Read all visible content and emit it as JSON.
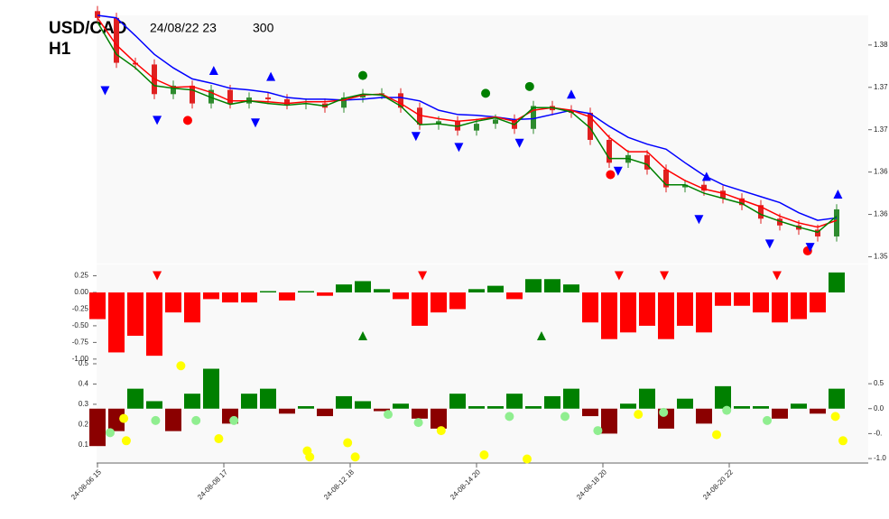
{
  "chart_data": [
    {
      "type": "candlestick",
      "title": "USD/CAD",
      "subtitle": "H1",
      "annotations": [
        "24/08/22 23",
        "300"
      ],
      "x": [
        0,
        7.5,
        15,
        22.5,
        30,
        37.5,
        45,
        52.5,
        60,
        67.5,
        75,
        82.5,
        90,
        97.5,
        105,
        112.5,
        120,
        127.5,
        135,
        142.5,
        150,
        157.5,
        165,
        172.5,
        180,
        187.5,
        195,
        202.5,
        210,
        217.5,
        225,
        232.5,
        240,
        247.5,
        255,
        262.5,
        270,
        277.5,
        285,
        292.5
      ],
      "xlim": [
        0,
        300
      ],
      "open": [
        1.384,
        1.3832,
        1.3779,
        1.3777,
        1.3742,
        1.3752,
        1.3731,
        1.3747,
        1.3731,
        1.3738,
        1.3736,
        1.373,
        1.3731,
        1.3726,
        1.3738,
        1.3742,
        1.3743,
        1.3726,
        1.3706,
        1.371,
        1.3699,
        1.3707,
        1.3712,
        1.3701,
        1.3728,
        1.3723,
        1.372,
        1.3688,
        1.3661,
        1.367,
        1.3653,
        1.3632,
        1.3635,
        1.3628,
        1.3619,
        1.3611,
        1.3595,
        1.3587,
        1.3582,
        1.3574
      ],
      "high": [
        1.3846,
        1.3838,
        1.3785,
        1.3783,
        1.3758,
        1.3758,
        1.3753,
        1.3753,
        1.3744,
        1.3744,
        1.3742,
        1.3737,
        1.3737,
        1.3744,
        1.3748,
        1.3749,
        1.3749,
        1.3732,
        1.3716,
        1.3716,
        1.3713,
        1.3718,
        1.3718,
        1.3734,
        1.3734,
        1.3729,
        1.3726,
        1.3694,
        1.3676,
        1.3676,
        1.3659,
        1.3641,
        1.3641,
        1.3634,
        1.3625,
        1.3617,
        1.3601,
        1.3593,
        1.3588,
        1.3612
      ],
      "low": [
        1.3826,
        1.3773,
        1.3771,
        1.3736,
        1.3736,
        1.3725,
        1.3725,
        1.3725,
        1.3725,
        1.373,
        1.3724,
        1.3724,
        1.372,
        1.372,
        1.3732,
        1.3736,
        1.372,
        1.37,
        1.37,
        1.3693,
        1.3693,
        1.3701,
        1.3695,
        1.3695,
        1.3717,
        1.3714,
        1.3682,
        1.3655,
        1.3655,
        1.3647,
        1.3626,
        1.3626,
        1.3622,
        1.3613,
        1.3605,
        1.3589,
        1.3581,
        1.3576,
        1.3568,
        1.3568
      ],
      "close": [
        1.3832,
        1.3779,
        1.3777,
        1.3742,
        1.3752,
        1.3731,
        1.3747,
        1.3731,
        1.3738,
        1.3736,
        1.373,
        1.3731,
        1.3726,
        1.3738,
        1.3742,
        1.3743,
        1.3726,
        1.3706,
        1.371,
        1.3699,
        1.3707,
        1.3712,
        1.3701,
        1.3728,
        1.3723,
        1.372,
        1.3688,
        1.3661,
        1.367,
        1.3653,
        1.3632,
        1.3635,
        1.3628,
        1.3619,
        1.3611,
        1.3595,
        1.3587,
        1.3582,
        1.3574,
        1.3606
      ],
      "up_color": "#2e8b2e",
      "down_color": "#e02020",
      "lines": [
        {
          "color": "#0000ff",
          "values": [
            1.3835,
            1.3832,
            1.3811,
            1.3789,
            1.3773,
            1.376,
            1.3755,
            1.3749,
            1.3747,
            1.3744,
            1.3738,
            1.3736,
            1.3736,
            1.3735,
            1.3736,
            1.3738,
            1.3738,
            1.3734,
            1.3723,
            1.3718,
            1.3717,
            1.3715,
            1.3712,
            1.3713,
            1.3718,
            1.3723,
            1.3719,
            1.3704,
            1.3691,
            1.3683,
            1.3677,
            1.3661,
            1.3646,
            1.3635,
            1.3628,
            1.3621,
            1.3614,
            1.3602,
            1.3593,
            1.3596
          ]
        },
        {
          "color": "#ff0000",
          "values": [
            1.3832,
            1.38,
            1.3779,
            1.376,
            1.375,
            1.3751,
            1.3744,
            1.3734,
            1.3734,
            1.3733,
            1.3731,
            1.3733,
            1.3733,
            1.3735,
            1.3741,
            1.3742,
            1.3731,
            1.3717,
            1.3713,
            1.371,
            1.3712,
            1.3715,
            1.371,
            1.3723,
            1.3726,
            1.3723,
            1.3715,
            1.3691,
            1.3674,
            1.3674,
            1.3653,
            1.364,
            1.363,
            1.3625,
            1.3617,
            1.3609,
            1.3598,
            1.359,
            1.3585,
            1.3593
          ]
        },
        {
          "color": "#008000",
          "values": [
            1.3827,
            1.3789,
            1.3773,
            1.3752,
            1.3749,
            1.3747,
            1.3738,
            1.373,
            1.3734,
            1.3731,
            1.3729,
            1.3731,
            1.3728,
            1.3737,
            1.3742,
            1.3741,
            1.3728,
            1.3706,
            1.3707,
            1.3704,
            1.371,
            1.3714,
            1.3706,
            1.3726,
            1.3726,
            1.3721,
            1.3702,
            1.3666,
            1.3666,
            1.3659,
            1.3635,
            1.3635,
            1.3625,
            1.3619,
            1.3613,
            1.36,
            1.3592,
            1.3585,
            1.3579,
            1.3598
          ]
        }
      ],
      "markers": [
        {
          "x": 105,
          "y": 1.3764,
          "color": "#008000",
          "shape": "dot"
        },
        {
          "x": 153.6,
          "y": 1.3743,
          "color": "#008000",
          "shape": "dot"
        },
        {
          "x": 171,
          "y": 1.3751,
          "color": "#008000",
          "shape": "dot"
        },
        {
          "x": 35.7,
          "y": 1.3711,
          "color": "#ff0000",
          "shape": "dot"
        },
        {
          "x": 203,
          "y": 1.3647,
          "color": "#ff0000",
          "shape": "dot"
        },
        {
          "x": 281,
          "y": 1.3557,
          "color": "#ff0000",
          "shape": "dot"
        },
        {
          "x": 46,
          "y": 1.377,
          "color": "#0000ff",
          "shape": "triangle-up"
        },
        {
          "x": 68.6,
          "y": 1.3763,
          "color": "#0000ff",
          "shape": "triangle-up"
        },
        {
          "x": 187.5,
          "y": 1.3742,
          "color": "#0000ff",
          "shape": "triangle-up"
        },
        {
          "x": 241,
          "y": 1.3645,
          "color": "#0000ff",
          "shape": "triangle-up"
        },
        {
          "x": 293,
          "y": 1.3624,
          "color": "#0000ff",
          "shape": "triangle-up"
        },
        {
          "x": 3,
          "y": 1.3746,
          "color": "#0000ff",
          "shape": "triangle-down"
        },
        {
          "x": 23.6,
          "y": 1.3711,
          "color": "#0000ff",
          "shape": "triangle-down"
        },
        {
          "x": 62.5,
          "y": 1.3708,
          "color": "#0000ff",
          "shape": "triangle-down"
        },
        {
          "x": 126,
          "y": 1.3692,
          "color": "#0000ff",
          "shape": "triangle-down"
        },
        {
          "x": 143,
          "y": 1.3679,
          "color": "#0000ff",
          "shape": "triangle-down"
        },
        {
          "x": 167,
          "y": 1.3684,
          "color": "#0000ff",
          "shape": "triangle-down"
        },
        {
          "x": 206,
          "y": 1.3651,
          "color": "#0000ff",
          "shape": "triangle-down"
        },
        {
          "x": 238,
          "y": 1.3594,
          "color": "#0000ff",
          "shape": "triangle-down"
        },
        {
          "x": 266,
          "y": 1.3565,
          "color": "#0000ff",
          "shape": "triangle-down"
        },
        {
          "x": 282,
          "y": 1.3561,
          "color": "#0000ff",
          "shape": "triangle-down"
        }
      ],
      "ylim": [
        1.3542,
        1.3835
      ],
      "yticks": [
        {
          "value": 1.38,
          "label": "1.38"
        },
        {
          "value": 1.375,
          "label": "1.37"
        },
        {
          "value": 1.37,
          "label": "1.37"
        },
        {
          "value": 1.365,
          "label": "1.36"
        },
        {
          "value": 1.36,
          "label": "1.36"
        },
        {
          "value": 1.355,
          "label": "1.35"
        }
      ]
    },
    {
      "type": "bar",
      "x": [
        0,
        7.5,
        15,
        22.5,
        30,
        37.5,
        45,
        52.5,
        60,
        67.5,
        75,
        82.5,
        90,
        97.5,
        105,
        112.5,
        120,
        127.5,
        135,
        142.5,
        150,
        157.5,
        165,
        172.5,
        180,
        187.5,
        195,
        202.5,
        210,
        217.5,
        225,
        232.5,
        240,
        247.5,
        255,
        262.5,
        270,
        277.5,
        285,
        292.5
      ],
      "xlim": [
        0,
        300
      ],
      "values": [
        -0.4,
        -0.9,
        -0.65,
        -0.95,
        -0.3,
        -0.45,
        -0.1,
        -0.15,
        -0.15,
        0.02,
        -0.12,
        0.02,
        -0.05,
        0.12,
        0.17,
        0.05,
        -0.1,
        -0.5,
        -0.3,
        -0.25,
        0.05,
        0.1,
        -0.1,
        0.2,
        0.2,
        0.12,
        -0.45,
        -0.7,
        -0.6,
        -0.5,
        -0.7,
        -0.5,
        -0.6,
        -0.2,
        -0.2,
        -0.3,
        -0.45,
        -0.4,
        -0.3,
        0.3
      ],
      "pos_color": "#008000",
      "neg_color": "#ff0000",
      "markers": [
        {
          "x": 23.6,
          "y": 0.25,
          "color": "#ff0000",
          "shape": "triangle-down"
        },
        {
          "x": 128.6,
          "y": 0.25,
          "color": "#ff0000",
          "shape": "triangle-down"
        },
        {
          "x": 206.4,
          "y": 0.25,
          "color": "#ff0000",
          "shape": "triangle-down"
        },
        {
          "x": 224.3,
          "y": 0.25,
          "color": "#ff0000",
          "shape": "triangle-down"
        },
        {
          "x": 268.9,
          "y": 0.25,
          "color": "#ff0000",
          "shape": "triangle-down"
        },
        {
          "x": 105,
          "y": -0.65,
          "color": "#008000",
          "shape": "triangle-up"
        },
        {
          "x": 175.7,
          "y": -0.65,
          "color": "#008000",
          "shape": "triangle-up"
        }
      ],
      "ylim": [
        -1.07,
        0.42
      ],
      "yticks": [
        0.25,
        {
          "value": 0,
          "label": "0.00"
        },
        -0.25,
        {
          "value": -0.5,
          "label": "-0.50"
        },
        -0.75,
        {
          "value": -1,
          "label": "-1.00"
        }
      ]
    },
    {
      "type": "bar",
      "x": [
        0,
        7.5,
        15,
        22.5,
        30,
        37.5,
        45,
        52.5,
        60,
        67.5,
        75,
        82.5,
        90,
        97.5,
        105,
        112.5,
        120,
        127.5,
        135,
        142.5,
        150,
        157.5,
        165,
        172.5,
        180,
        187.5,
        195,
        202.5,
        210,
        217.5,
        225,
        232.5,
        240,
        247.5,
        255,
        262.5,
        270,
        277.5,
        285,
        292.5
      ],
      "xlim": [
        0,
        300
      ],
      "values": [
        -0.75,
        -0.45,
        0.4,
        0.15,
        -0.45,
        0.3,
        0.8,
        -0.3,
        0.3,
        0.4,
        -0.1,
        0.05,
        -0.15,
        0.25,
        0.15,
        -0.05,
        0.1,
        -0.2,
        -0.4,
        0.3,
        0.05,
        0.05,
        0.3,
        0.05,
        0.25,
        0.4,
        -0.15,
        -0.5,
        0.1,
        0.4,
        -0.4,
        0.2,
        -0.3,
        0.45,
        0.05,
        0.05,
        -0.2,
        0.1,
        -0.1,
        0.4
      ],
      "axis": "y2",
      "pos_color": "#008000",
      "neg_color": "#8b0000",
      "markers": [
        {
          "x": 11.4,
          "y": 0.12,
          "color": "#ffff00",
          "shape": "dot"
        },
        {
          "x": 10.4,
          "y": 0.23,
          "color": "#ffff00",
          "shape": "dot"
        },
        {
          "x": 33,
          "y": 0.49,
          "color": "#ffff00",
          "shape": "dot"
        },
        {
          "x": 48,
          "y": 0.13,
          "color": "#ffff00",
          "shape": "dot"
        },
        {
          "x": 83,
          "y": 0.07,
          "color": "#ffff00",
          "shape": "dot"
        },
        {
          "x": 84,
          "y": 0.04,
          "color": "#ffff00",
          "shape": "dot"
        },
        {
          "x": 99,
          "y": 0.11,
          "color": "#ffff00",
          "shape": "dot"
        },
        {
          "x": 102,
          "y": 0.04,
          "color": "#ffff00",
          "shape": "dot"
        },
        {
          "x": 136,
          "y": 0.17,
          "color": "#ffff00",
          "shape": "dot"
        },
        {
          "x": 153,
          "y": 0.05,
          "color": "#ffff00",
          "shape": "dot"
        },
        {
          "x": 170,
          "y": 0.03,
          "color": "#ffff00",
          "shape": "dot"
        },
        {
          "x": 214,
          "y": 0.25,
          "color": "#ffff00",
          "shape": "dot"
        },
        {
          "x": 245,
          "y": 0.15,
          "color": "#ffff00",
          "shape": "dot"
        },
        {
          "x": 292,
          "y": 0.24,
          "color": "#ffff00",
          "shape": "dot"
        },
        {
          "x": 295,
          "y": 0.12,
          "color": "#ffff00",
          "shape": "dot"
        },
        {
          "x": 5,
          "y": 0.16,
          "color": "#90ee90",
          "shape": "dot"
        },
        {
          "x": 23,
          "y": 0.22,
          "color": "#90ee90",
          "shape": "dot"
        },
        {
          "x": 39,
          "y": 0.22,
          "color": "#90ee90",
          "shape": "dot"
        },
        {
          "x": 54,
          "y": 0.22,
          "color": "#90ee90",
          "shape": "dot"
        },
        {
          "x": 115,
          "y": 0.25,
          "color": "#90ee90",
          "shape": "dot"
        },
        {
          "x": 127,
          "y": 0.21,
          "color": "#90ee90",
          "shape": "dot"
        },
        {
          "x": 163,
          "y": 0.24,
          "color": "#90ee90",
          "shape": "dot"
        },
        {
          "x": 185,
          "y": 0.24,
          "color": "#90ee90",
          "shape": "dot"
        },
        {
          "x": 198,
          "y": 0.17,
          "color": "#90ee90",
          "shape": "dot"
        },
        {
          "x": 224,
          "y": 0.26,
          "color": "#90ee90",
          "shape": "dot"
        },
        {
          "x": 249,
          "y": 0.27,
          "color": "#90ee90",
          "shape": "dot"
        },
        {
          "x": 265,
          "y": 0.22,
          "color": "#90ee90",
          "shape": "dot"
        }
      ],
      "ylim": [
        0.01,
        0.5
      ],
      "yticks": [
        0.5,
        0.4,
        0.3,
        0.2,
        0.1
      ],
      "y2lim": [
        -1.09,
        0.9
      ],
      "y2ticks": [
        0.5,
        {
          "value": 0,
          "label": "0.0"
        },
        {
          "value": -0.5,
          "label": "-0."
        },
        {
          "value": -1,
          "label": "-1.0"
        }
      ],
      "xticks": [
        {
          "value": 0,
          "label": "24-08-06 15"
        },
        {
          "value": 50,
          "label": "24-08-08 17"
        },
        {
          "value": 100,
          "label": "24-08-12 18"
        },
        {
          "value": 150,
          "label": "24-08-14 20"
        },
        {
          "value": 200,
          "label": "24-08-18 20"
        },
        {
          "value": 250,
          "label": "24-08-20 22"
        }
      ]
    }
  ]
}
